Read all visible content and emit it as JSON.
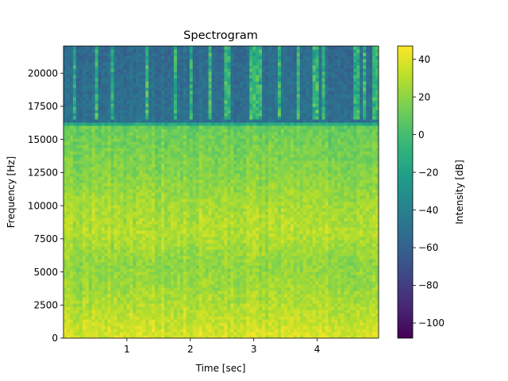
{
  "chart_data": {
    "type": "heatmap",
    "title": "Spectrogram",
    "xlabel": "Time [sec]",
    "ylabel": "Frequency [Hz]",
    "colorbar_label": "Intensity [dB]",
    "colormap": "viridis",
    "xlim": [
      0,
      4.97
    ],
    "ylim": [
      0,
      22050
    ],
    "clim": [
      -108,
      47
    ],
    "x_ticks": [
      1,
      2,
      3,
      4
    ],
    "x_tick_labels": [
      "1",
      "2",
      "3",
      "4"
    ],
    "y_ticks": [
      0,
      2500,
      5000,
      7500,
      10000,
      12500,
      15000,
      17500,
      20000
    ],
    "y_tick_labels": [
      "0",
      "2500",
      "5000",
      "7500",
      "10000",
      "12500",
      "15000",
      "17500",
      "20000"
    ],
    "cbar_ticks": [
      40,
      20,
      0,
      -20,
      -40,
      -60,
      -80,
      -100
    ],
    "cbar_tick_labels": [
      "40",
      "20",
      "0",
      "−20",
      "−40",
      "−60",
      "−80",
      "−100"
    ],
    "intensity_profile_db": [
      {
        "freq": 0,
        "db": 38
      },
      {
        "freq": 1500,
        "db": 32
      },
      {
        "freq": 4000,
        "db": 24
      },
      {
        "freq": 5500,
        "db": 20
      },
      {
        "freq": 8000,
        "db": 30
      },
      {
        "freq": 10000,
        "db": 26
      },
      {
        "freq": 12500,
        "db": 18
      },
      {
        "freq": 15500,
        "db": 12
      },
      {
        "freq": 16100,
        "db": 10
      },
      {
        "freq": 16300,
        "db": -50
      },
      {
        "freq": 22050,
        "db": -55
      }
    ],
    "transient_times_sec": [
      0.18,
      0.52,
      0.78,
      1.32,
      1.78,
      2.02,
      2.32,
      2.58,
      2.98,
      3.04,
      3.12,
      3.42,
      3.72,
      3.98,
      4.12,
      4.62,
      4.74,
      4.88,
      4.96
    ]
  }
}
